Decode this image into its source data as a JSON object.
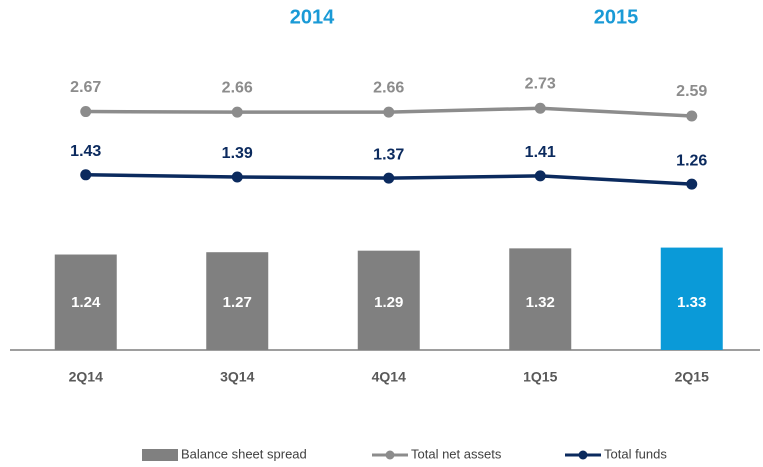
{
  "chart_data": {
    "type": "bar-line",
    "annotations": [
      {
        "text": "2014"
      },
      {
        "text": "2015"
      }
    ],
    "annotation_color": "#1a9ad6",
    "categories": [
      "2Q14",
      "3Q14",
      "4Q14",
      "1Q15",
      "2Q15"
    ],
    "series": [
      {
        "name": "Balance sheet spread",
        "type": "bar",
        "color": "#808080",
        "colors": [
          "#808080",
          "#808080",
          "#808080",
          "#808080",
          "#0a9ad8"
        ],
        "values": [
          1.24,
          1.27,
          1.29,
          1.32,
          1.33
        ]
      },
      {
        "name": "Total net assets",
        "type": "line",
        "color": "#8c8c8c",
        "values": [
          2.67,
          2.66,
          2.66,
          2.73,
          2.59
        ]
      },
      {
        "name": "Total funds",
        "type": "line",
        "color": "#0b2a5e",
        "values": [
          1.43,
          1.39,
          1.37,
          1.41,
          1.26
        ]
      }
    ]
  }
}
